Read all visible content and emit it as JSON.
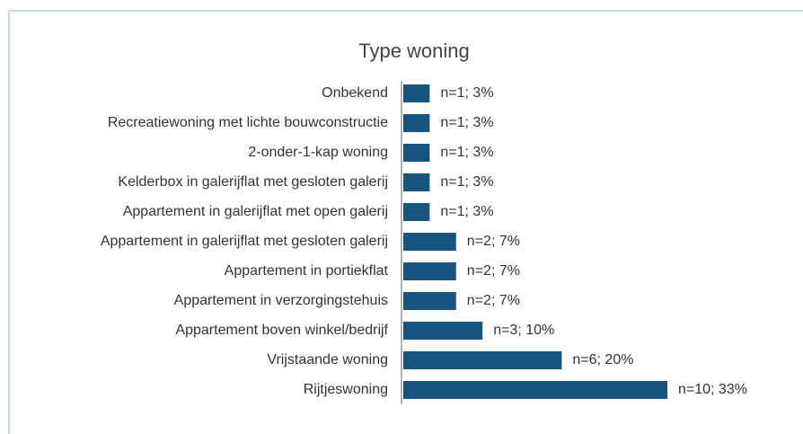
{
  "chart_data": {
    "type": "bar",
    "orientation": "horizontal",
    "title": "Type woning",
    "categories": [
      "Onbekend",
      "Recreatiewoning met lichte bouwconstructie",
      "2-onder-1-kap woning",
      "Kelderbox in galerijflat met gesloten galerij",
      "Appartement in galerijflat met open galerij",
      "Appartement in galerijflat met gesloten galerij",
      "Appartement in portiekflat",
      "Appartement in verzorgingstehuis",
      "Appartement boven winkel/bedrijf",
      "Vrijstaande woning",
      "Rijtjeswoning"
    ],
    "values": [
      1,
      1,
      1,
      1,
      1,
      2,
      2,
      2,
      3,
      6,
      10
    ],
    "value_labels": [
      "n=1; 3%",
      "n=1; 3%",
      "n=1; 3%",
      "n=1; 3%",
      "n=1; 3%",
      "n=2; 7%",
      "n=2; 7%",
      "n=2; 7%",
      "n=3; 10%",
      "n=6; 20%",
      "n=10; 33%"
    ],
    "color": "#17557f"
  }
}
